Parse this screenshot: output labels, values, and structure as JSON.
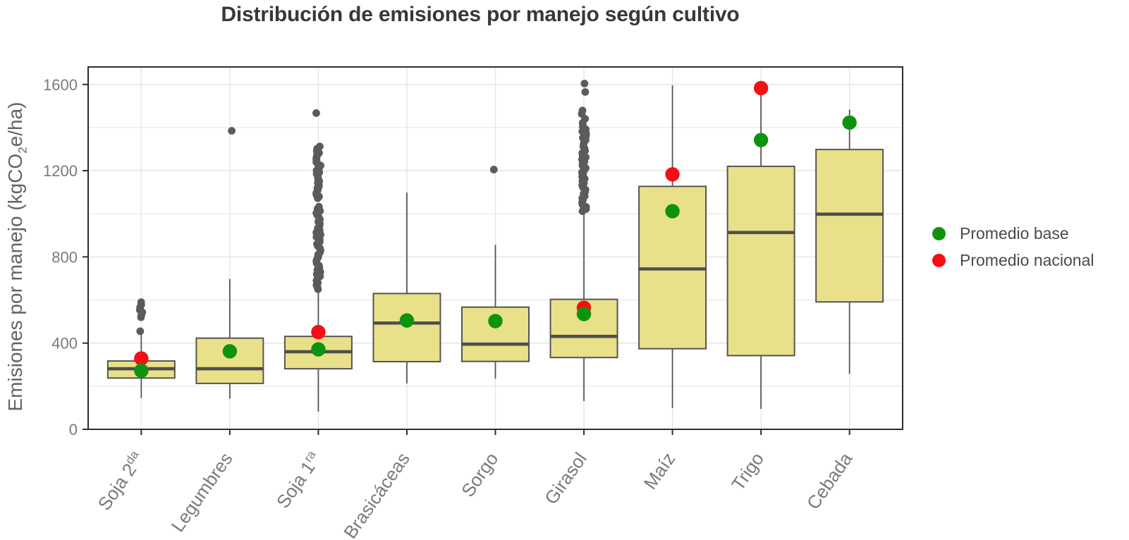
{
  "chart_data": {
    "type": "boxplot",
    "title": "Distribución de emisiones por manejo según cultivo",
    "ylabel": "Emisiones por manejo (kgCO₂e/ha)",
    "xlabel": "",
    "ylim": [
      0,
      1680
    ],
    "yticks": [
      0,
      400,
      800,
      1200,
      1600
    ],
    "grid": {
      "horizontal_every": 200,
      "vertical": "at each category center"
    },
    "legend": {
      "position": "right",
      "items": [
        {
          "label": "Promedio base",
          "color": "#0f930f"
        },
        {
          "label": "Promedio nacional",
          "color": "#f50f14"
        }
      ]
    },
    "style": {
      "box_fill": "#e9e08a",
      "box_stroke": "#555555",
      "median_stroke": "#4f4f4f",
      "whisker_stroke": "#555555",
      "outlier_fill": "#5b5b5b",
      "grid_color": "#e6e6e6",
      "panel_border": "#2e2e2e",
      "tick_label_color": "#7a7a7a",
      "axis_title_color": "#636363",
      "title_color": "#383838",
      "legend_text_color": "#4a4a4a"
    },
    "categories": [
      {
        "label": "Soja 2",
        "label_sup": "da",
        "whisker_low": 145,
        "q1": 238,
        "median": 281,
        "q3": 317,
        "whisker_high": 447,
        "outliers": [
          455,
          520,
          532,
          543,
          554,
          566,
          578,
          590
        ],
        "promedio_base": 272,
        "promedio_nacional": 329
      },
      {
        "label": "Legumbres",
        "label_sup": "",
        "whisker_low": 142,
        "q1": 213,
        "median": 281,
        "q3": 423,
        "whisker_high": 698,
        "outliers": [
          1385
        ],
        "promedio_base": 362,
        "promedio_nacional": null
      },
      {
        "label": "Soja 1",
        "label_sup": "ra",
        "whisker_low": 82,
        "q1": 281,
        "median": 360,
        "q3": 431,
        "whisker_high": 645,
        "outliers": [
          650,
          660,
          670,
          680,
          690,
          700,
          710,
          720,
          730,
          740,
          750,
          760,
          770,
          780,
          790,
          800,
          810,
          820,
          830,
          840,
          850,
          860,
          870,
          880,
          893,
          903,
          913,
          923,
          933,
          943,
          953,
          963,
          973,
          983,
          993,
          1003,
          1013,
          1023,
          1033,
          1072,
          1080,
          1088,
          1096,
          1104,
          1112,
          1120,
          1128,
          1136,
          1144,
          1152,
          1160,
          1168,
          1176,
          1184,
          1192,
          1200,
          1208,
          1216,
          1224,
          1232,
          1240,
          1248,
          1256,
          1264,
          1272,
          1282,
          1292,
          1302,
          1312,
          1467
        ],
        "promedio_base": 371,
        "promedio_nacional": 451
      },
      {
        "label": "Brasicáceas",
        "label_sup": "",
        "whisker_low": 213,
        "q1": 314,
        "median": 493,
        "q3": 630,
        "whisker_high": 1098,
        "outliers": [],
        "promedio_base": 505,
        "promedio_nacional": null
      },
      {
        "label": "Sorgo",
        "label_sup": "",
        "whisker_low": 235,
        "q1": 315,
        "median": 395,
        "q3": 567,
        "whisker_high": 856,
        "outliers": [
          1205
        ],
        "promedio_base": 502,
        "promedio_nacional": null
      },
      {
        "label": "Girasol",
        "label_sup": "",
        "whisker_low": 131,
        "q1": 333,
        "median": 431,
        "q3": 603,
        "whisker_high": 1005,
        "outliers": [
          1012,
          1022,
          1032,
          1042,
          1052,
          1062,
          1072,
          1082,
          1092,
          1102,
          1112,
          1122,
          1132,
          1142,
          1152,
          1162,
          1172,
          1182,
          1192,
          1202,
          1212,
          1222,
          1232,
          1242,
          1252,
          1262,
          1272,
          1282,
          1292,
          1302,
          1312,
          1322,
          1332,
          1342,
          1352,
          1362,
          1372,
          1382,
          1392,
          1402,
          1412,
          1422,
          1441,
          1463,
          1479,
          1565,
          1604
        ],
        "promedio_base": 535,
        "promedio_nacional": 564
      },
      {
        "label": "Maíz",
        "label_sup": "",
        "whisker_low": 99,
        "q1": 374,
        "median": 744,
        "q3": 1127,
        "whisker_high": 1595,
        "outliers": [],
        "promedio_base": 1012,
        "promedio_nacional": 1183
      },
      {
        "label": "Trigo",
        "label_sup": "",
        "whisker_low": 95,
        "q1": 342,
        "median": 913,
        "q3": 1220,
        "whisker_high": 1590,
        "outliers": [],
        "promedio_base": 1342,
        "promedio_nacional": 1583
      },
      {
        "label": "Cebada",
        "label_sup": "",
        "whisker_low": 257,
        "q1": 591,
        "median": 998,
        "q3": 1298,
        "whisker_high": 1483,
        "outliers": [],
        "promedio_base": 1423,
        "promedio_nacional": null
      }
    ]
  }
}
